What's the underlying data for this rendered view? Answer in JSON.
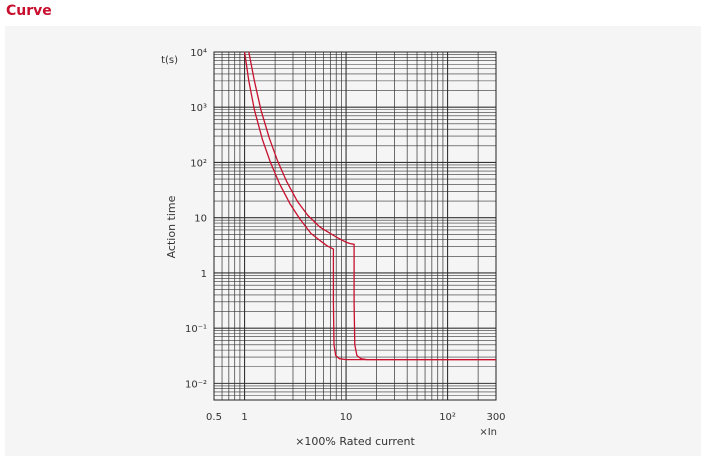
{
  "section_title": "Curve",
  "accent_color": "#c8102e",
  "chart_data": {
    "type": "line",
    "title": "",
    "xlabel": "×100% Rated current",
    "xunit": "×In",
    "ylabel": "Action time",
    "yunit": "t(s)",
    "x_scale": "log",
    "y_scale": "log",
    "xlim": [
      0.5,
      300
    ],
    "ylim": [
      0.005,
      10000
    ],
    "grid": true,
    "x_tick_labels": [
      {
        "value": 0.5,
        "label": "0.5"
      },
      {
        "value": 1,
        "label": "1"
      },
      {
        "value": 10,
        "label": "10"
      },
      {
        "value": 100,
        "label": "10²"
      },
      {
        "value": 300,
        "label": "300"
      }
    ],
    "y_tick_labels": [
      {
        "value": 10000,
        "label": "10⁴"
      },
      {
        "value": 1000,
        "label": "10³"
      },
      {
        "value": 100,
        "label": "10²"
      },
      {
        "value": 10,
        "label": "10"
      },
      {
        "value": 1,
        "label": "1"
      },
      {
        "value": 0.1,
        "label": "10⁻¹"
      },
      {
        "value": 0.01,
        "label": "10⁻²"
      }
    ],
    "series": [
      {
        "color": "#c8102e",
        "x": [
          1.0,
          1.1,
          1.25,
          1.5,
          1.8,
          2.2,
          2.8,
          3.5,
          4.5,
          5.5,
          6.5,
          7.5,
          7.5,
          7.6,
          7.9,
          8.6,
          10,
          300
        ],
        "y": [
          10000,
          3000,
          900,
          260,
          100,
          42,
          18,
          9.5,
          5.2,
          3.9,
          3.1,
          2.7,
          0.28,
          0.05,
          0.032,
          0.028,
          0.027,
          0.027
        ]
      },
      {
        "color": "#c8102e",
        "x": [
          1.1,
          1.25,
          1.45,
          1.75,
          2.1,
          2.6,
          3.3,
          4.2,
          5.5,
          7.0,
          8.5,
          10,
          11,
          12,
          12,
          12.2,
          12.8,
          14,
          16,
          300
        ],
        "y": [
          10000,
          3000,
          900,
          280,
          110,
          45,
          20,
          11,
          6.8,
          5.2,
          4.2,
          3.6,
          3.4,
          3.3,
          0.28,
          0.05,
          0.032,
          0.028,
          0.027,
          0.027
        ]
      }
    ]
  }
}
